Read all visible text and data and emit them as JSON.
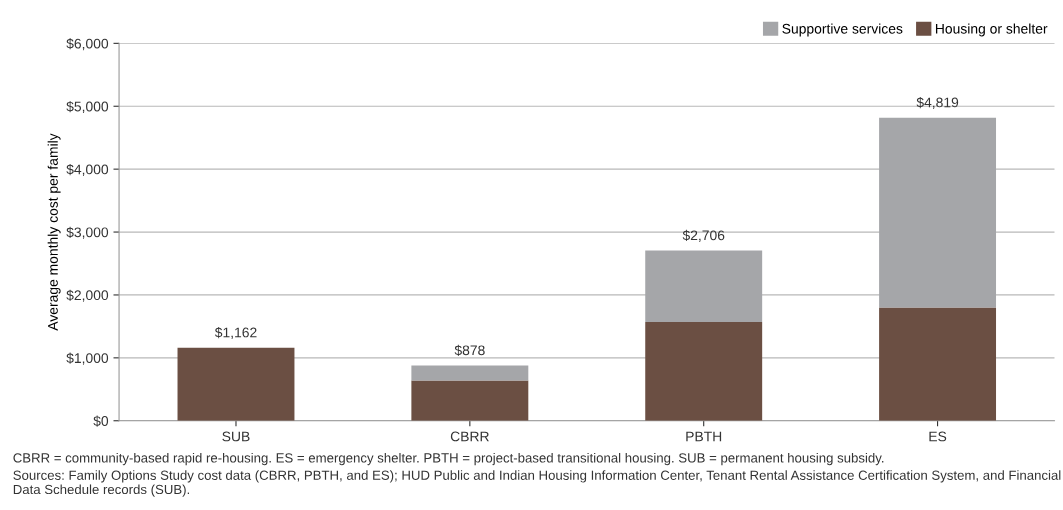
{
  "chart_data": {
    "type": "bar",
    "stacked": true,
    "ylabel": "Average monthly cost per family",
    "categories": [
      "SUB",
      "CBRR",
      "PBTH",
      "ES"
    ],
    "series": [
      {
        "name": "Housing or shelter",
        "color": "#6b4f43",
        "values": [
          1162,
          640,
          1570,
          1800
        ]
      },
      {
        "name": "Supportive services",
        "color": "#a5a6a9",
        "values": [
          0,
          238,
          1136,
          3019
        ]
      }
    ],
    "totals": [
      "$1,162",
      "$878",
      "$2,706",
      "$4,819"
    ],
    "ylim": [
      0,
      6000
    ],
    "yticks": [
      {
        "value": 0,
        "label": "$0"
      },
      {
        "value": 1000,
        "label": "$1,000"
      },
      {
        "value": 2000,
        "label": "$2,000"
      },
      {
        "value": 3000,
        "label": "$3,000"
      },
      {
        "value": 4000,
        "label": "$4,000"
      },
      {
        "value": 5000,
        "label": "$5,000"
      },
      {
        "value": 6000,
        "label": "$6,000"
      }
    ],
    "grid": "y",
    "legend": "top right",
    "annotations": [
      "CBRR = community-based rapid re-housing. ES = emergency shelter. PBTH = project-based transitional housing. SUB = permanent housing subsidy.",
      "Sources: Family Options Study cost data (CBRR, PBTH, and ES); HUD Public and Indian Housing Information Center, Tenant Rental Assistance Certification System, and Financial Data Schedule records (SUB)."
    ]
  }
}
